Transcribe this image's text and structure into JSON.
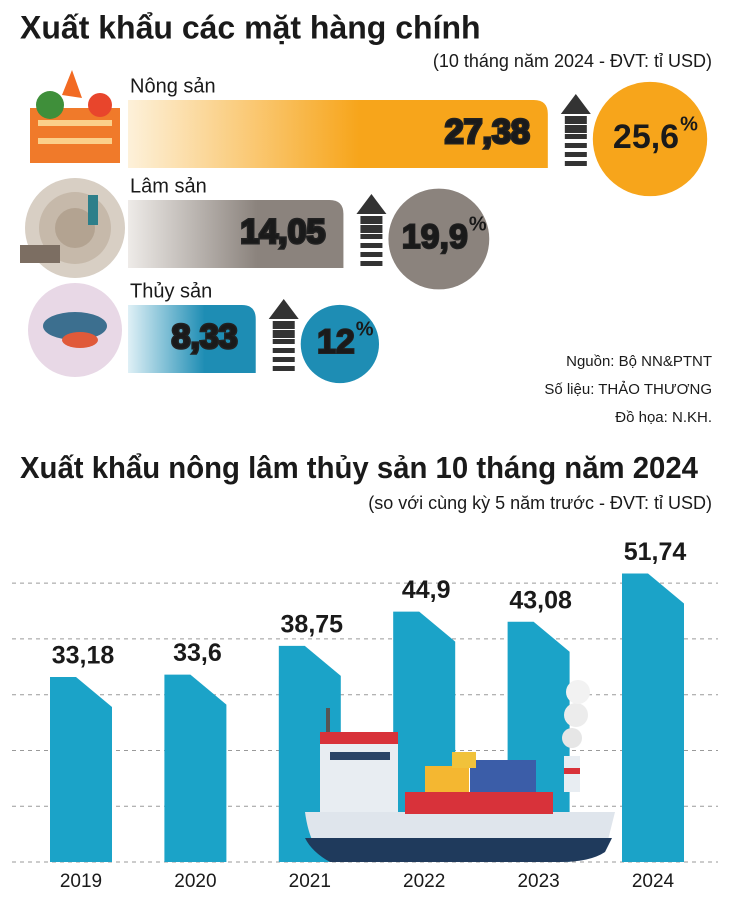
{
  "chart_data": [
    {
      "type": "hbar",
      "title": "Xuất khẩu các mặt hàng chính",
      "subtitle": "(10 tháng năm 2024 - ĐVT: tỉ USD)",
      "categories": [
        "Nông sản",
        "Lâm sản",
        "Thủy sản"
      ],
      "values": [
        27.38,
        14.05,
        8.33
      ],
      "value_labels": [
        "27,38",
        "14,05",
        "8,33"
      ],
      "colors": [
        "#f7a51b",
        "#8b837d",
        "#1e8db4"
      ],
      "xlim": [
        0,
        30
      ],
      "growth": {
        "values": [
          25.6,
          19.9,
          12
        ],
        "value_labels": [
          "25,6",
          "19,9",
          "12"
        ],
        "unit": "%"
      },
      "annotations": [
        "Nguồn: Bộ NN&PTNT",
        "Số liệu: THẢO THƯƠNG",
        "Đồ họa: N.KH."
      ]
    },
    {
      "type": "bar",
      "title": "Xuất khẩu nông lâm thủy sản 10 tháng năm 2024",
      "subtitle": "(so với cùng kỳ 5 năm trước - ĐVT: tỉ USD)",
      "categories": [
        "2019",
        "2020",
        "2021",
        "2022",
        "2023",
        "2024"
      ],
      "values": [
        33.18,
        33.6,
        38.75,
        44.9,
        43.08,
        51.74
      ],
      "value_labels": [
        "33,18",
        "33,6",
        "38,75",
        "44,9",
        "43,08",
        "51,74"
      ],
      "color": "#1ba3c8",
      "ylim": [
        0,
        52
      ],
      "yticks": [
        0,
        10,
        20,
        30,
        40,
        50
      ],
      "grid": true
    }
  ]
}
